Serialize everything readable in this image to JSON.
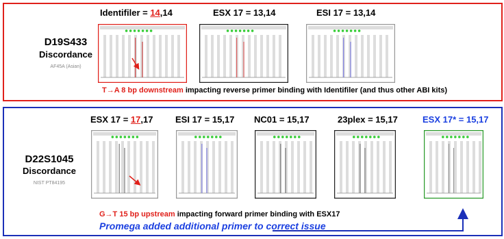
{
  "panels": [
    {
      "locus": "D19S433",
      "discordance": "Discordance",
      "sample": "AF45A (Asian)",
      "images": [
        {
          "prefix": "Identifiler = ",
          "highlight": "14",
          "suffix": ",14"
        },
        {
          "label": "ESX 17 = 13,14"
        },
        {
          "label": "ESI 17 = 13,14"
        }
      ],
      "note": {
        "highlight": "T→A 8 bp downstream",
        "text": " impacting reverse primer binding with Identifiler (and thus other ABI kits)"
      }
    },
    {
      "locus": "D22S1045",
      "discordance": "Discordance",
      "sample": "NIST PT84195",
      "images": [
        {
          "prefix": "ESX 17 = ",
          "highlight": "17",
          "suffix": ",17"
        },
        {
          "label": "ESI 17 = 15,17"
        },
        {
          "label": "NC01 = 15,17"
        },
        {
          "label": "23plex = 15,17"
        },
        {
          "label": "ESX 17* = 15,17"
        }
      ],
      "note": {
        "highlight": "G→T 15 bp upstream",
        "text": " impacting forward primer binding with ESX17"
      },
      "fix": "Promega added additional primer to correct issue"
    }
  ]
}
